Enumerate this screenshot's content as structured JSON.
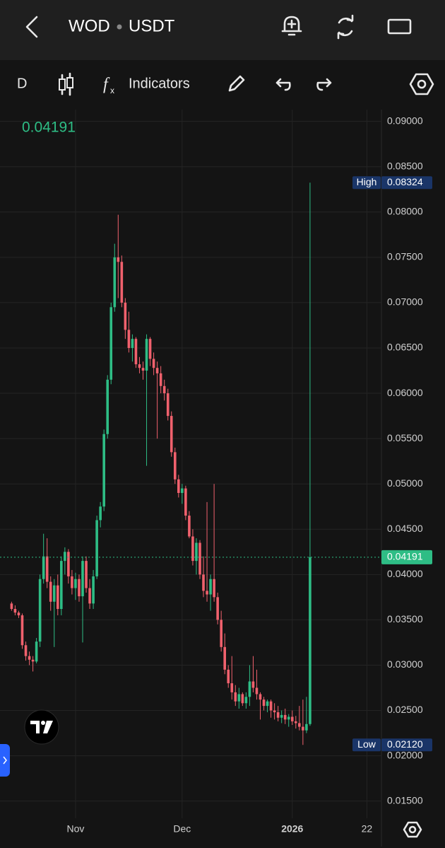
{
  "header": {
    "symbol": "WOD",
    "quote": "USDT"
  },
  "toolbar": {
    "interval": "D",
    "indicators": "Indicators"
  },
  "chart_data": {
    "type": "candlestick",
    "up_color": "#2ebd85",
    "down_color": "#f0616d",
    "grid": true,
    "ylim": [
      0.0131,
      0.0913
    ],
    "yticks": [
      {
        "value": 0.015,
        "label": "0.01500"
      },
      {
        "value": 0.02,
        "label": "0.02000"
      },
      {
        "value": 0.025,
        "label": "0.02500"
      },
      {
        "value": 0.03,
        "label": "0.03000"
      },
      {
        "value": 0.035,
        "label": "0.03500"
      },
      {
        "value": 0.04,
        "label": "0.04000"
      },
      {
        "value": 0.045,
        "label": "0.04500"
      },
      {
        "value": 0.05,
        "label": "0.05000"
      },
      {
        "value": 0.055,
        "label": "0.05500"
      },
      {
        "value": 0.06,
        "label": "0.06000"
      },
      {
        "value": 0.065,
        "label": "0.06500"
      },
      {
        "value": 0.07,
        "label": "0.07000"
      },
      {
        "value": 0.075,
        "label": "0.07500"
      },
      {
        "value": 0.08,
        "label": "0.08000"
      },
      {
        "value": 0.085,
        "label": "0.08500"
      },
      {
        "value": 0.09,
        "label": "0.09000"
      }
    ],
    "last_price": {
      "value": 0.04191,
      "label": "0.04191"
    },
    "high_marker": {
      "text": "High",
      "value": 0.08324,
      "label": "0.08324"
    },
    "low_marker": {
      "text": "Low",
      "value": 0.0212,
      "label": "0.02120"
    },
    "categories": [
      null,
      null,
      null,
      null,
      null,
      null,
      null,
      null,
      null,
      null,
      null,
      null,
      null,
      null,
      null,
      null,
      null,
      null,
      "Nov",
      null,
      null,
      null,
      null,
      null,
      null,
      null,
      null,
      null,
      null,
      null,
      null,
      null,
      null,
      null,
      null,
      null,
      null,
      null,
      null,
      null,
      null,
      null,
      null,
      null,
      null,
      null,
      null,
      null,
      "Dec",
      null,
      null,
      null,
      null,
      null,
      null,
      null,
      null,
      null,
      null,
      null,
      null,
      null,
      null,
      null,
      null,
      null,
      null,
      null,
      null,
      null,
      null,
      null,
      null,
      null,
      null,
      null,
      null,
      null,
      null,
      "2026",
      null,
      null,
      null,
      null,
      null,
      null,
      null,
      null,
      null,
      null,
      null,
      null,
      null,
      null,
      null,
      null,
      null,
      null,
      null,
      null,
      "22",
      null,
      null,
      null,
      null
    ],
    "open": [
      0.0368,
      0.0362,
      0.0358,
      0.0355,
      0.0322,
      0.031,
      0.0306,
      0.0304,
      0.0326,
      0.0395,
      0.042,
      0.0392,
      0.037,
      0.0388,
      0.0362,
      0.0415,
      0.0425,
      0.0398,
      0.0385,
      0.0395,
      0.0376,
      0.0415,
      0.0385,
      0.0368,
      0.0398,
      0.046,
      0.0475,
      0.0555,
      0.0615,
      0.0695,
      0.075,
      0.0745,
      0.07,
      0.067,
      0.065,
      0.066,
      0.0632,
      0.0628,
      0.0625,
      0.066,
      0.0638,
      0.0628,
      0.0622,
      0.0608,
      0.06,
      0.0575,
      0.0535,
      0.0505,
      0.049,
      0.0495,
      0.0465,
      0.0442,
      0.0415,
      0.0435,
      0.04,
      0.0382,
      0.0378,
      0.0395,
      0.0375,
      0.035,
      0.032,
      0.0295,
      0.028,
      0.027,
      0.026,
      0.0268,
      0.0258,
      0.0265,
      0.0282,
      0.0275,
      0.0268,
      0.0262,
      0.0255,
      0.026,
      0.025,
      0.0248,
      0.0242,
      0.0245,
      0.024,
      0.0243,
      0.0238,
      0.0236,
      0.0232,
      0.0228,
      0.0235,
      null,
      null,
      null,
      null,
      null,
      null,
      null,
      null,
      null,
      null,
      null,
      null,
      null,
      null,
      null,
      null,
      null,
      null,
      null,
      null
    ],
    "high": [
      0.037,
      0.0366,
      0.036,
      0.0357,
      0.0326,
      0.0315,
      0.031,
      0.033,
      0.04,
      0.0445,
      0.044,
      0.0398,
      0.0395,
      0.04,
      0.042,
      0.043,
      0.0428,
      0.0405,
      0.0402,
      0.04,
      0.042,
      0.042,
      0.0395,
      0.0405,
      0.0465,
      0.048,
      0.056,
      0.062,
      0.07,
      0.0765,
      0.0797,
      0.0752,
      0.0705,
      0.069,
      0.0665,
      0.0662,
      0.064,
      0.0635,
      0.0665,
      0.0662,
      0.0645,
      0.0635,
      0.063,
      0.0615,
      0.0605,
      0.058,
      0.054,
      0.051,
      0.05,
      0.0498,
      0.047,
      0.045,
      0.044,
      0.0438,
      0.042,
      0.048,
      0.04,
      0.05,
      0.038,
      0.036,
      0.0335,
      0.03,
      0.031,
      0.0278,
      0.0275,
      0.027,
      0.027,
      0.03,
      0.031,
      0.0295,
      0.027,
      0.0265,
      0.0262,
      0.0262,
      0.0258,
      0.0255,
      0.025,
      0.0252,
      0.0246,
      0.025,
      0.0244,
      0.0255,
      0.0262,
      0.0265,
      0.08324,
      null,
      null,
      null,
      null,
      null,
      null,
      null,
      null,
      null,
      null,
      null,
      null,
      null,
      null,
      null,
      null,
      null,
      null,
      null,
      null
    ],
    "low": [
      0.036,
      0.0355,
      0.0352,
      0.0318,
      0.0305,
      0.03,
      0.0293,
      0.0302,
      0.032,
      0.039,
      0.0385,
      0.036,
      0.032,
      0.0355,
      0.0355,
      0.04,
      0.039,
      0.0378,
      0.0372,
      0.037,
      0.0325,
      0.038,
      0.0362,
      0.0362,
      0.0395,
      0.0452,
      0.047,
      0.055,
      0.061,
      0.069,
      0.0705,
      0.0695,
      0.066,
      0.0645,
      0.0635,
      0.0628,
      0.0622,
      0.0615,
      0.052,
      0.063,
      0.062,
      0.055,
      0.06,
      0.0592,
      0.057,
      0.053,
      0.05,
      0.0485,
      0.0478,
      0.046,
      0.044,
      0.041,
      0.04,
      0.0395,
      0.0375,
      0.037,
      0.036,
      0.037,
      0.0345,
      0.0315,
      0.029,
      0.0275,
      0.0262,
      0.0255,
      0.0252,
      0.0255,
      0.0252,
      0.0255,
      0.027,
      0.0262,
      0.024,
      0.025,
      0.0248,
      0.0242,
      0.024,
      0.0238,
      0.0236,
      0.0235,
      0.0232,
      0.0234,
      0.023,
      0.0228,
      0.0212,
      0.0225,
      0.0233,
      null,
      null,
      null,
      null,
      null,
      null,
      null,
      null,
      null,
      null,
      null,
      null,
      null,
      null,
      null,
      null,
      null,
      null,
      null,
      null
    ],
    "close": [
      0.0362,
      0.0358,
      0.0355,
      0.0322,
      0.031,
      0.0306,
      0.0304,
      0.0326,
      0.0395,
      0.042,
      0.0392,
      0.037,
      0.0388,
      0.0362,
      0.0415,
      0.0425,
      0.0398,
      0.0385,
      0.0395,
      0.0376,
      0.0415,
      0.0385,
      0.0368,
      0.0398,
      0.046,
      0.0475,
      0.0555,
      0.0615,
      0.0695,
      0.075,
      0.0745,
      0.07,
      0.067,
      0.065,
      0.066,
      0.0632,
      0.0628,
      0.0625,
      0.066,
      0.0638,
      0.0628,
      0.0622,
      0.0608,
      0.06,
      0.0575,
      0.0535,
      0.0505,
      0.049,
      0.0495,
      0.0465,
      0.0442,
      0.0415,
      0.0435,
      0.04,
      0.0382,
      0.0378,
      0.0395,
      0.0375,
      0.035,
      0.032,
      0.0295,
      0.028,
      0.027,
      0.026,
      0.0268,
      0.0258,
      0.0265,
      0.0282,
      0.0275,
      0.0268,
      0.0262,
      0.0255,
      0.026,
      0.025,
      0.0248,
      0.0242,
      0.0245,
      0.024,
      0.0243,
      0.0238,
      0.0236,
      0.0232,
      0.0228,
      0.0235,
      0.04191,
      null,
      null,
      null,
      null,
      null,
      null,
      null,
      null,
      null,
      null,
      null,
      null,
      null,
      null,
      null,
      null,
      null,
      null,
      null,
      null
    ]
  }
}
